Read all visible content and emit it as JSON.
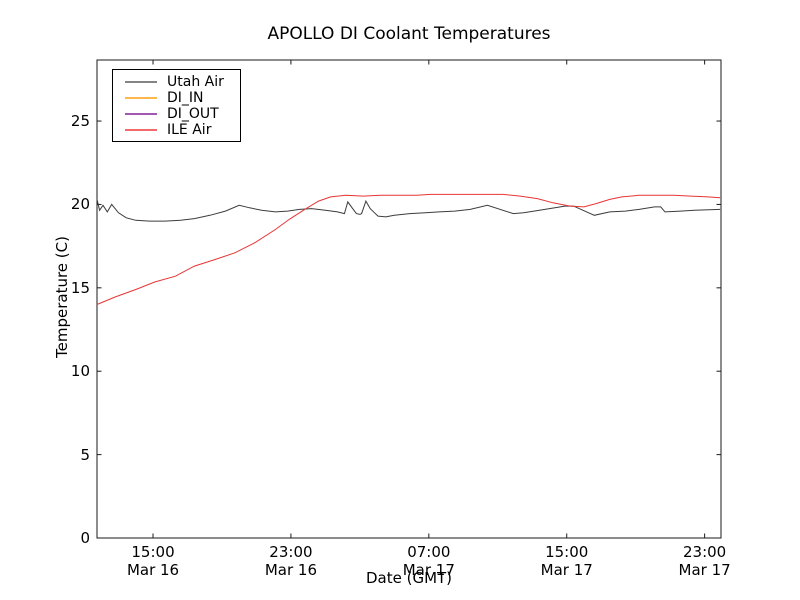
{
  "chart_data": {
    "type": "line",
    "title": "APOLLO DI Coolant Temperatures",
    "xlabel": "Date (GMT)",
    "ylabel": "Temperature (C)",
    "grid": false,
    "x_unit": "hours since Mar 16 00:00 GMT",
    "xlim": [
      11.75,
      47.95
    ],
    "ylim": [
      0,
      28.66
    ],
    "yticks": [
      0,
      5,
      10,
      15,
      20,
      25
    ],
    "xticks": [
      {
        "value": 15,
        "time": "15:00",
        "date": "Mar 16"
      },
      {
        "value": 23,
        "time": "23:00",
        "date": "Mar 16"
      },
      {
        "value": 31,
        "time": "07:00",
        "date": "Mar 17"
      },
      {
        "value": 39,
        "time": "15:00",
        "date": "Mar 17"
      },
      {
        "value": 47,
        "time": "23:00",
        "date": "Mar 17"
      }
    ],
    "legend": {
      "position": "upper-left",
      "entries": [
        {
          "label": "Utah Air",
          "color": "#6e6e6e"
        },
        {
          "label": "DI_IN",
          "color": "#ffab2e"
        },
        {
          "label": "DI_OUT",
          "color": "#9139a6"
        },
        {
          "label": "ILE Air",
          "color": "#f05050"
        }
      ]
    },
    "series": [
      {
        "name": "Utah Air",
        "color": "#3c3c3c",
        "points": [
          [
            11.75,
            20.3
          ],
          [
            11.9,
            19.65
          ],
          [
            12.1,
            19.95
          ],
          [
            12.35,
            19.55
          ],
          [
            12.6,
            20.0
          ],
          [
            13.0,
            19.5
          ],
          [
            13.45,
            19.2
          ],
          [
            14.0,
            19.05
          ],
          [
            14.8,
            19.0
          ],
          [
            15.7,
            19.0
          ],
          [
            16.6,
            19.05
          ],
          [
            17.4,
            19.15
          ],
          [
            18.3,
            19.35
          ],
          [
            19.2,
            19.6
          ],
          [
            20.0,
            19.95
          ],
          [
            20.6,
            19.8
          ],
          [
            21.3,
            19.65
          ],
          [
            22.1,
            19.55
          ],
          [
            22.8,
            19.6
          ],
          [
            23.5,
            19.7
          ],
          [
            24.2,
            19.75
          ],
          [
            25.0,
            19.65
          ],
          [
            25.7,
            19.55
          ],
          [
            26.1,
            19.45
          ],
          [
            26.3,
            20.15
          ],
          [
            26.55,
            19.8
          ],
          [
            26.8,
            19.45
          ],
          [
            27.0,
            19.4
          ],
          [
            27.1,
            19.45
          ],
          [
            27.35,
            20.2
          ],
          [
            27.6,
            19.75
          ],
          [
            27.85,
            19.5
          ],
          [
            28.05,
            19.3
          ],
          [
            28.5,
            19.25
          ],
          [
            29.0,
            19.35
          ],
          [
            29.9,
            19.45
          ],
          [
            30.8,
            19.5
          ],
          [
            31.6,
            19.55
          ],
          [
            32.5,
            19.6
          ],
          [
            33.4,
            19.7
          ],
          [
            34.4,
            19.95
          ],
          [
            35.9,
            19.45
          ],
          [
            36.5,
            19.5
          ],
          [
            37.1,
            19.6
          ],
          [
            38.0,
            19.75
          ],
          [
            38.9,
            19.9
          ],
          [
            39.4,
            19.9
          ],
          [
            40.6,
            19.35
          ],
          [
            41.5,
            19.55
          ],
          [
            42.4,
            19.6
          ],
          [
            43.2,
            19.7
          ],
          [
            44.1,
            19.85
          ],
          [
            44.45,
            19.85
          ],
          [
            44.7,
            19.55
          ],
          [
            45.6,
            19.6
          ],
          [
            46.4,
            19.65
          ],
          [
            47.9,
            19.7
          ]
        ]
      },
      {
        "name": "DI_IN",
        "color": "#ffab2e",
        "note": "no data visible in plot area",
        "points": []
      },
      {
        "name": "DI_OUT",
        "color": "#9139a6",
        "note": "no data visible in plot area",
        "points": []
      },
      {
        "name": "ILE Air",
        "color": "#e73535",
        "points": [
          [
            11.75,
            14.0
          ],
          [
            12.8,
            14.45
          ],
          [
            14.0,
            14.9
          ],
          [
            15.1,
            15.35
          ],
          [
            16.3,
            15.7
          ],
          [
            17.4,
            16.3
          ],
          [
            18.6,
            16.7
          ],
          [
            19.75,
            17.1
          ],
          [
            20.9,
            17.7
          ],
          [
            22.1,
            18.5
          ],
          [
            22.9,
            19.1
          ],
          [
            23.8,
            19.7
          ],
          [
            24.6,
            20.2
          ],
          [
            25.3,
            20.45
          ],
          [
            26.2,
            20.55
          ],
          [
            27.2,
            20.5
          ],
          [
            28.2,
            20.55
          ],
          [
            29.3,
            20.55
          ],
          [
            30.3,
            20.55
          ],
          [
            31.1,
            20.6
          ],
          [
            32.3,
            20.6
          ],
          [
            33.4,
            20.6
          ],
          [
            34.5,
            20.6
          ],
          [
            35.3,
            20.6
          ],
          [
            36.3,
            20.5
          ],
          [
            37.3,
            20.35
          ],
          [
            38.2,
            20.1
          ],
          [
            39.2,
            19.9
          ],
          [
            40.0,
            19.85
          ],
          [
            40.7,
            20.05
          ],
          [
            41.5,
            20.3
          ],
          [
            42.2,
            20.45
          ],
          [
            43.2,
            20.55
          ],
          [
            44.2,
            20.55
          ],
          [
            45.2,
            20.55
          ],
          [
            46.2,
            20.5
          ],
          [
            47.2,
            20.45
          ],
          [
            47.9,
            20.4
          ]
        ]
      }
    ],
    "axis_color": "#1a1a1a"
  }
}
